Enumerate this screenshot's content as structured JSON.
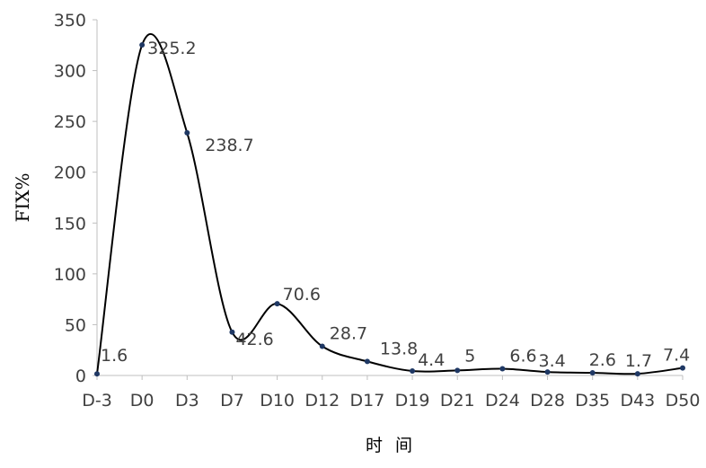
{
  "chart_data": {
    "type": "line",
    "categories": [
      "D-3",
      "D0",
      "D3",
      "D7",
      "D10",
      "D12",
      "D17",
      "D19",
      "D21",
      "D24",
      "D28",
      "D35",
      "D43",
      "D50"
    ],
    "series": [
      {
        "values": [
          1.6,
          325.2,
          238.7,
          42.6,
          70.6,
          28.7,
          13.8,
          4.4,
          5,
          6.6,
          3.4,
          2.6,
          1.7,
          7.4
        ],
        "labels": [
          "1.6",
          "325.2",
          "238.7",
          "42.6",
          "70.6",
          "28.7",
          "13.8",
          "4.4",
          "5",
          "6.6",
          "3.4",
          "2.6",
          "1.7",
          "7.4"
        ]
      }
    ],
    "title": "",
    "xlabel": "时间",
    "ylabel": "FIX%",
    "ylim": [
      0,
      350
    ],
    "yticks": [
      "0",
      "50",
      "100",
      "150",
      "200",
      "250",
      "300",
      "350"
    ],
    "smooth": true,
    "grid": false,
    "legend": "none",
    "colors": {
      "line": "#000000",
      "marker": "#1f3864",
      "text": "#404040"
    }
  }
}
